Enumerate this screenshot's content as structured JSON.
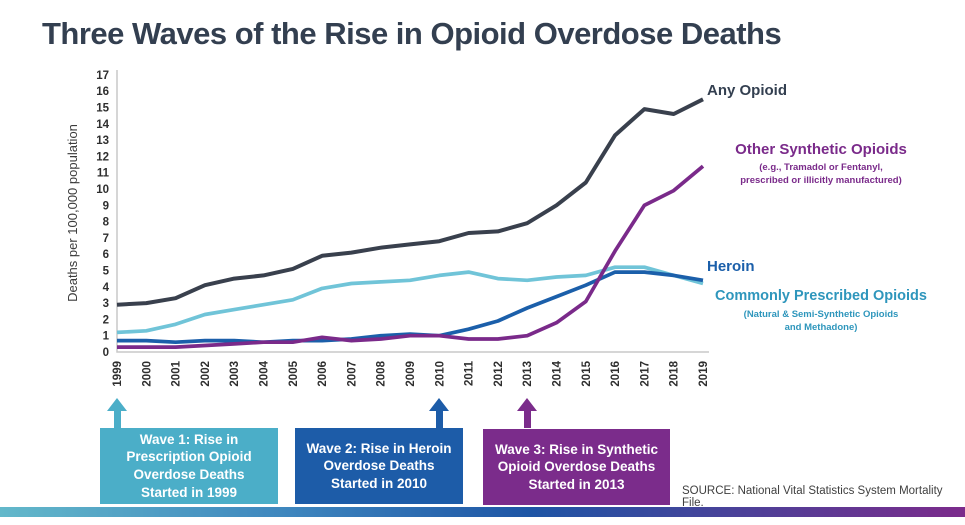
{
  "title": "Three Waves of the Rise in Opioid Overdose Deaths",
  "source": "SOURCE: National Vital Statistics System Mortality File.",
  "colors": {
    "title_navy": "#333F50",
    "any_opioid_line": "#39404D",
    "synthetic_line": "#7A2A8A",
    "heroin_line": "#1B5FAA",
    "prescribed_line": "#70C4D8",
    "prescribed_label": "#2E96BC",
    "wave1_box": "#4BAEC8",
    "wave2_box": "#1D5CA8",
    "wave3_box": "#7B2C8B",
    "axis_gray": "#c9c9c9",
    "bottom_bar_gradient": [
      "#63b8ca",
      "#1e55a5",
      "#7c2b8b"
    ]
  },
  "chart_data": {
    "type": "line",
    "title": "Three Waves of the Rise in Opioid Overdose Deaths",
    "xlabel": "",
    "ylabel": "Deaths per 100,000 population",
    "ylim": [
      0,
      17
    ],
    "ytick_step": 1,
    "grid": false,
    "legend_position": "right",
    "x": [
      1999,
      2000,
      2001,
      2002,
      2003,
      2004,
      2005,
      2006,
      2007,
      2008,
      2009,
      2010,
      2011,
      2012,
      2013,
      2014,
      2015,
      2016,
      2017,
      2018,
      2019
    ],
    "series": [
      {
        "name": "Any Opioid",
        "color": "#39404D",
        "width": 4,
        "values": [
          2.9,
          3.0,
          3.3,
          4.1,
          4.5,
          4.7,
          5.1,
          5.9,
          6.1,
          6.4,
          6.6,
          6.8,
          7.3,
          7.4,
          7.9,
          9.0,
          10.4,
          13.3,
          14.9,
          14.6,
          15.5
        ]
      },
      {
        "name": "Other Synthetic Opioids",
        "color": "#7A2A8A",
        "width": 3.7,
        "values": [
          0.3,
          0.3,
          0.3,
          0.4,
          0.5,
          0.6,
          0.6,
          0.9,
          0.7,
          0.8,
          1.0,
          1.0,
          0.8,
          0.8,
          1.0,
          1.8,
          3.1,
          6.2,
          9.0,
          9.9,
          11.4
        ]
      },
      {
        "name": "Heroin",
        "color": "#1B5FAA",
        "width": 3.7,
        "values": [
          0.7,
          0.7,
          0.6,
          0.7,
          0.7,
          0.6,
          0.7,
          0.7,
          0.8,
          1.0,
          1.1,
          1.0,
          1.4,
          1.9,
          2.7,
          3.4,
          4.1,
          4.9,
          4.9,
          4.7,
          4.4
        ]
      },
      {
        "name": "Commonly Prescribed Opioids",
        "color": "#70C4D8",
        "width": 3.7,
        "values": [
          1.2,
          1.3,
          1.7,
          2.3,
          2.6,
          2.9,
          3.2,
          3.9,
          4.2,
          4.3,
          4.4,
          4.7,
          4.9,
          4.5,
          4.4,
          4.6,
          4.7,
          5.2,
          5.2,
          4.7,
          4.2
        ]
      }
    ]
  },
  "legend": {
    "any_opioid": "Any Opioid",
    "synthetic": "Other Synthetic Opioids",
    "synthetic_sub": "(e.g., Tramadol or Fentanyl,\nprescribed or illicitly manufactured)",
    "heroin": "Heroin",
    "prescribed": "Commonly Prescribed Opioids",
    "prescribed_sub": "(Natural & Semi-Synthetic Opioids\nand Methadone)"
  },
  "waves": [
    {
      "label": "Wave 1: Rise in\nPrescription Opioid\nOverdose Deaths\nStarted in 1999",
      "color": "#4BAEC8",
      "arrow_year": 1999
    },
    {
      "label": "Wave 2: Rise in Heroin\nOverdose Deaths\nStarted in 2010",
      "color": "#1D5CA8",
      "arrow_year": 2010
    },
    {
      "label": "Wave 3: Rise in Synthetic\nOpioid Overdose Deaths\nStarted in 2013",
      "color": "#7B2C8B",
      "arrow_year": 2013
    }
  ]
}
